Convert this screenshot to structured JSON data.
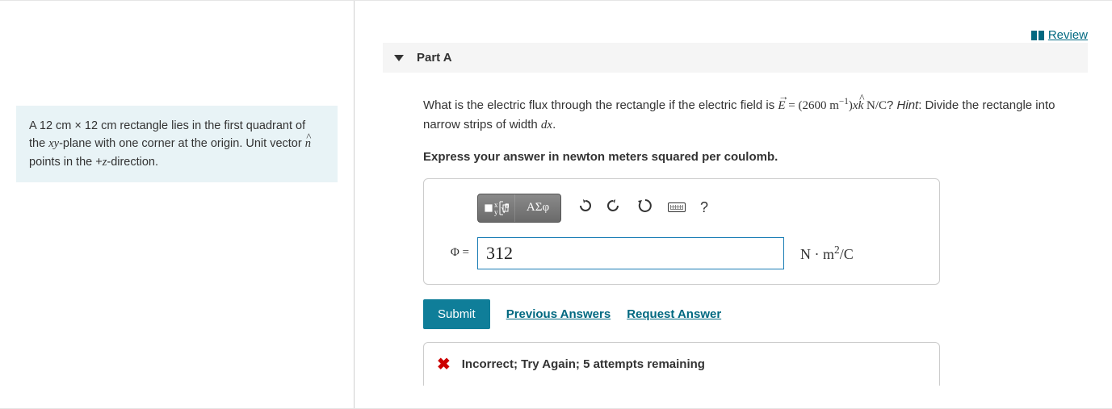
{
  "review": {
    "label": "Review"
  },
  "problem": {
    "text_html": "A 12 cm × 12 cm rectangle lies in the first quadrant of the <span class='mathit'>xy</span>-plane with one corner at the origin. Unit vector <span class='mathit hat'>n</span> points in the +<span class='mathit'>z</span>-direction."
  },
  "part": {
    "label": "Part A"
  },
  "question": {
    "text_html": "What is the electric flux through the rectangle if the electric field is <span class='mathrm'><span class='mathit vec-arrow'>E</span> = (2600 m<sup>−1</sup>)<span class='mathit'>x</span><span class='mathit hat'>k</span> N/C</span>? <span style='font-style:italic'>Hint</span>: Divide the rectangle into narrow strips of width <span class='mathit'>dx</span>.",
    "instruction": "Express your answer in newton meters squared per coulomb."
  },
  "toolbar": {
    "template_btn": "tmpl",
    "greek_btn": "ΑΣφ",
    "undo": "↶",
    "redo": "↷",
    "reset": "↻",
    "keyboard": "kbd",
    "help": "?"
  },
  "answer": {
    "symbol": "Φ =",
    "value": "312",
    "unit_html": "N · m<sup>2</sup>/C"
  },
  "actions": {
    "submit": "Submit",
    "previous": "Previous Answers",
    "request": "Request Answer"
  },
  "feedback": {
    "message": "Incorrect; Try Again; 5 attempts remaining"
  }
}
